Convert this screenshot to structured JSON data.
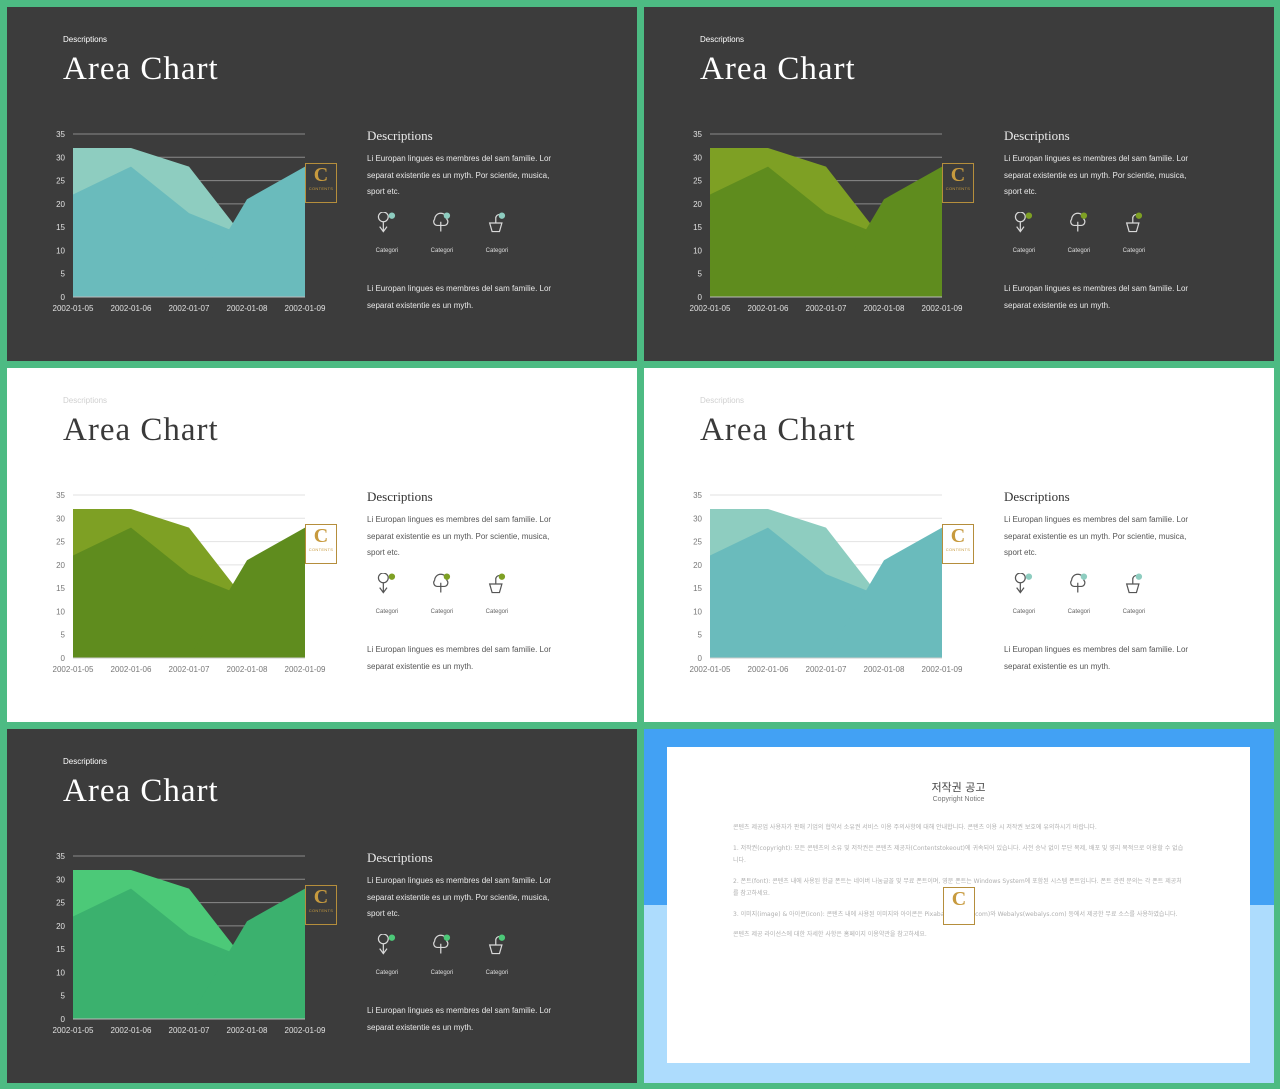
{
  "slides": [
    {
      "theme": "dark",
      "small": "Descriptions",
      "title": "Area Chart",
      "panel_title": "Descriptions",
      "p1": "Li Europan lingues es membres del sam familie. Lor separat existentie es un myth. Por scientie, musica, sport etc.",
      "p2": "Li Europan lingues es membres del sam familie. Lor separat existentie es un myth.",
      "categories": [
        "Categori",
        "Categori",
        "Categori"
      ],
      "colors": {
        "back": "#8ecdc0",
        "front": "#6abbbc",
        "icon": "#8ecdc0"
      }
    },
    {
      "theme": "dark",
      "small": "Descriptions",
      "title": "Area Chart",
      "panel_title": "Descriptions",
      "p1": "Li Europan lingues es membres del sam familie. Lor separat existentie es un myth. Por scientie, musica, sport etc.",
      "p2": "Li Europan lingues es membres del sam familie. Lor separat existentie es un myth.",
      "categories": [
        "Categori",
        "Categori",
        "Categori"
      ],
      "colors": {
        "back": "#7ea024",
        "front": "#5f8c1e",
        "icon": "#7ea024"
      }
    },
    {
      "theme": "light",
      "small": "Descriptions",
      "title": "Area Chart",
      "panel_title": "Descriptions",
      "p1": "Li Europan lingues es membres del sam familie. Lor separat existentie es un myth. Por scientie, musica, sport etc.",
      "p2": "Li Europan lingues es membres del sam familie. Lor separat existentie es un myth.",
      "categories": [
        "Categori",
        "Categori",
        "Categori"
      ],
      "colors": {
        "back": "#7ea024",
        "front": "#5f8c1e",
        "icon": "#7ea024"
      }
    },
    {
      "theme": "light",
      "small": "Descriptions",
      "title": "Area Chart",
      "panel_title": "Descriptions",
      "p1": "Li Europan lingues es membres del sam familie. Lor separat existentie es un myth. Por scientie, musica, sport etc.",
      "p2": "Li Europan lingues es membres del sam familie. Lor separat existentie es un myth.",
      "categories": [
        "Categori",
        "Categori",
        "Categori"
      ],
      "colors": {
        "back": "#8ecdc0",
        "front": "#6abbbc",
        "icon": "#8ecdc0"
      }
    },
    {
      "theme": "dark",
      "small": "Descriptions",
      "title": "Area Chart",
      "panel_title": "Descriptions",
      "p1": "Li Europan lingues es membres del sam familie. Lor separat existentie es un myth. Por scientie, musica, sport etc.",
      "p2": "Li Europan lingues es membres del sam familie. Lor separat existentie es un myth.",
      "categories": [
        "Categori",
        "Categori",
        "Categori"
      ],
      "colors": {
        "back": "#4cc978",
        "front": "#3bb16e",
        "icon": "#4cc978"
      }
    }
  ],
  "logo": {
    "letter": "C",
    "text": "CONTENTS"
  },
  "notice": {
    "title": "저작권 공고",
    "subtitle": "Copyright Notice",
    "paragraphs": [
      "콘텐츠 제공업 사용자가 판매 기업의 협약서 소유권 서비스 이용 주의사항에 대해 안내합니다. 콘텐츠 이용 시 저작권 보호에 유의하시기 바랍니다.",
      "1. 저작권(copyright): 모든 콘텐츠의 소유 및 저작권은 콘텐츠 제공자(Contentstokeout)에 귀속되어 있습니다. 사전 승낙 없이 무단 복제, 배포 및 영리 목적으로 이용할 수 없습니다.",
      "2. 폰트(font): 콘텐츠 내에 사용된 한글 폰트는 네이버 나눔글꼴 및 무료 폰트이며, 영문 폰트는 Windows System에 포함된 시스템 폰트입니다. 폰트 관련 문의는 각 폰트 제공처를 참고하세요.",
      "3. 이미지(image) & 아이콘(icon): 콘텐츠 내에 사용된 이미지와 아이콘은 Pixabay(pixabay.com)와 Webalys(webalys.com) 등에서 제공한 무료 소스를 사용하였습니다.",
      "콘텐츠 제공 라이선스에 대한 자세한 사항은 홈페이지 이용약관을 참고하세요."
    ]
  },
  "chart_data": [
    {
      "type": "area",
      "x": [
        "2002-01-05",
        "2002-01-06",
        "2002-01-07",
        "2002-01-08",
        "2002-01-09"
      ],
      "series": [
        {
          "values": [
            32,
            32,
            28,
            12,
            0
          ]
        },
        {
          "values": [
            22,
            28,
            18,
            13,
            0
          ]
        },
        {
          "values": [
            0,
            0,
            0,
            21,
            28
          ]
        }
      ],
      "ylim": [
        0,
        35
      ],
      "yticks": [
        0,
        5,
        10,
        15,
        20,
        25,
        30,
        35
      ]
    }
  ]
}
